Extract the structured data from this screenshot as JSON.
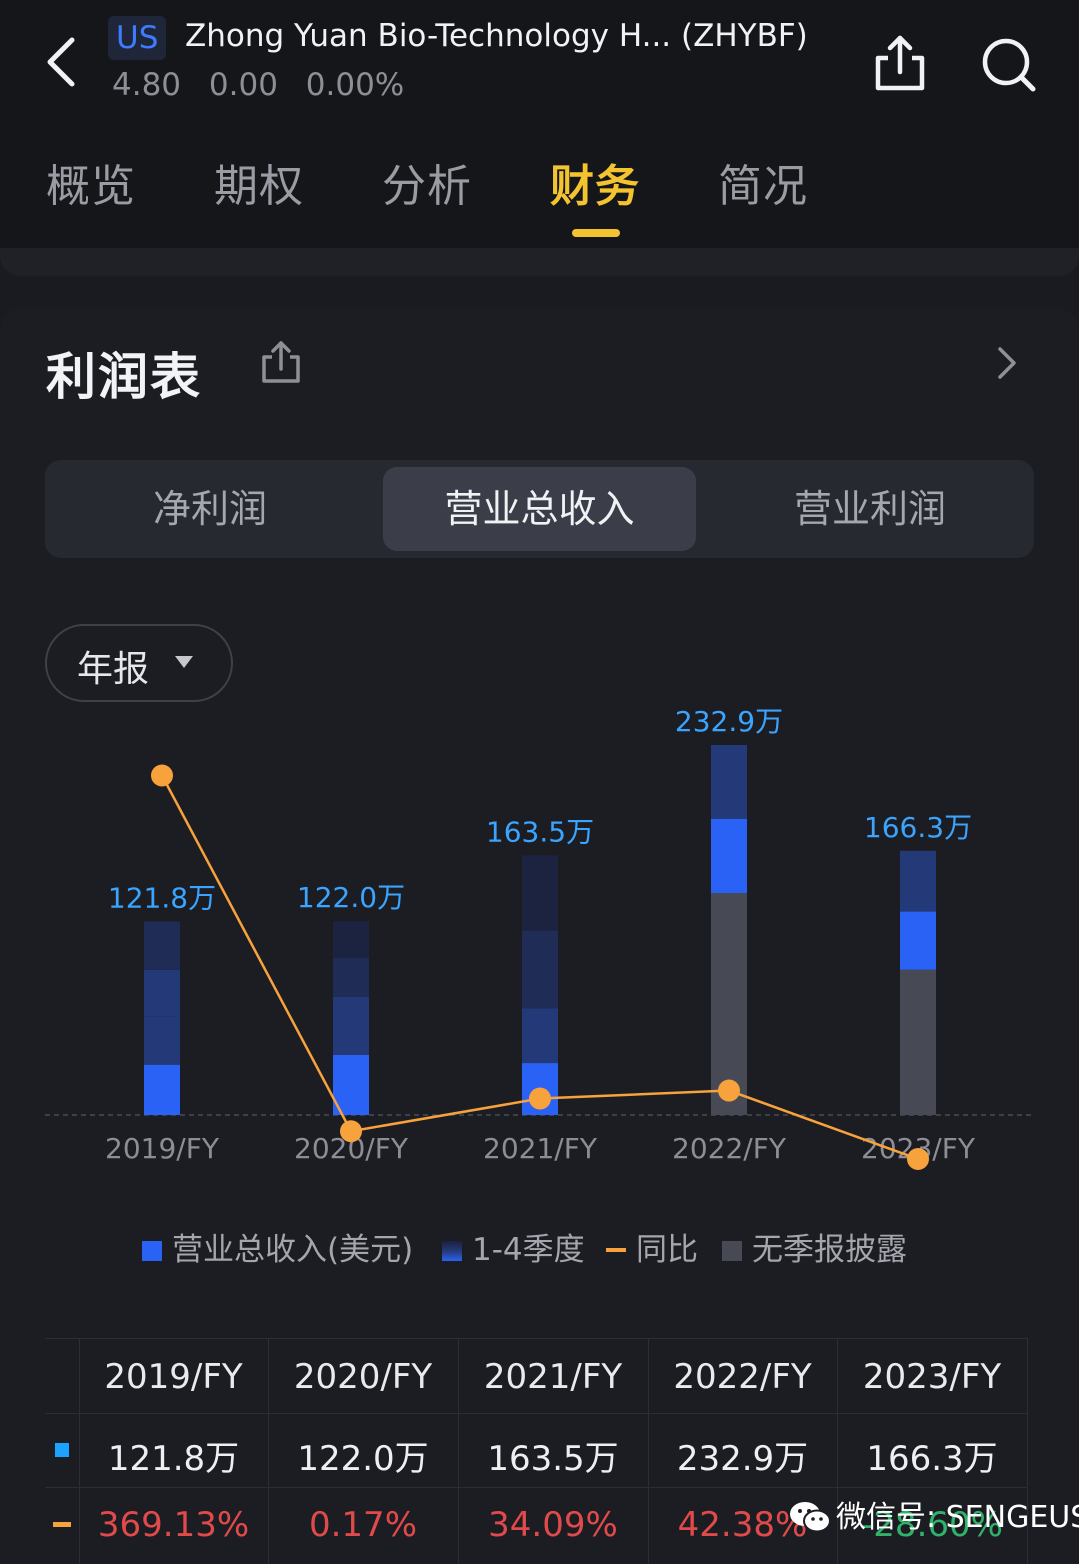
{
  "header": {
    "market": "US",
    "name": "Zhong Yuan Bio-Technology H... (ZHYBF)",
    "price": "4.80",
    "change": "0.00",
    "change_pct": "0.00%"
  },
  "tabs": [
    {
      "label": "概览",
      "active": false
    },
    {
      "label": "期权",
      "active": false
    },
    {
      "label": "分析",
      "active": false
    },
    {
      "label": "财务",
      "active": true
    },
    {
      "label": "简况",
      "active": false
    }
  ],
  "card": {
    "title": "利润表",
    "segments": [
      {
        "label": "净利润",
        "active": false
      },
      {
        "label": "营业总收入",
        "active": true
      },
      {
        "label": "营业利润",
        "active": false
      }
    ],
    "period": "年报"
  },
  "colors": {
    "revenue": "#2a62f5",
    "quarter": "#243a78",
    "yoy": "#f7a23c",
    "undisclosed": "#474955",
    "accent": "#f4c430",
    "label_blue": "#3aa4ff"
  },
  "chart_data": {
    "type": "bar",
    "categories": [
      "2019/FY",
      "2020/FY",
      "2021/FY",
      "2022/FY",
      "2023/FY"
    ],
    "series": [
      {
        "name": "营业总收入(美元)",
        "values": [
          1218000,
          1220000,
          1635000,
          2329000,
          1663000
        ]
      },
      {
        "name": "同比",
        "values": [
          369.13,
          0.17,
          34.09,
          42.38,
          -28.6
        ]
      }
    ],
    "bar_labels": [
      "121.8万",
      "122.0万",
      "163.5万",
      "232.9万",
      "166.3万"
    ],
    "legend": [
      "营业总收入(美元)",
      "1-4季度",
      "同比",
      "无季报披露"
    ],
    "legend_position": "bottom",
    "ylim": [
      0,
      2500000
    ],
    "yoy_ylim": [
      -40,
      380
    ]
  },
  "table": {
    "headers": [
      "2019/FY",
      "2020/FY",
      "2021/FY",
      "2022/FY",
      "2023/FY"
    ],
    "revenue": [
      "121.8万",
      "122.0万",
      "163.5万",
      "232.9万",
      "166.3万"
    ],
    "yoy": [
      "369.13%",
      "0.17%",
      "34.09%",
      "42.38%",
      "-28.60%"
    ]
  },
  "watermark": {
    "text": "微信号: SENGEUS"
  }
}
